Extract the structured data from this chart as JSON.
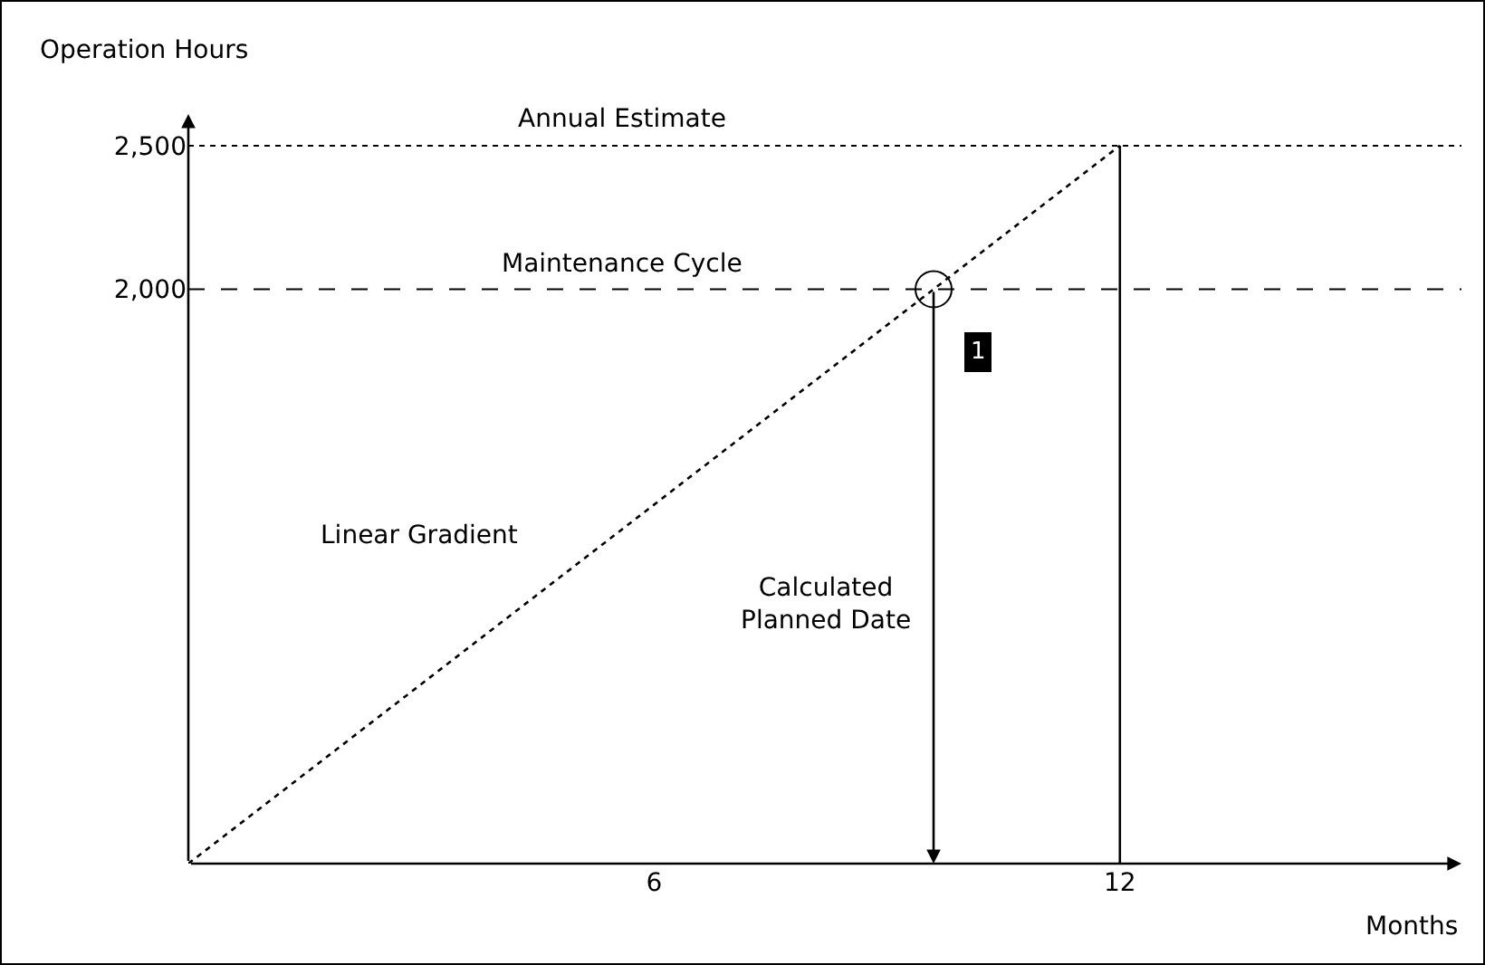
{
  "chart_data": {
    "type": "line",
    "xlabel": "Months",
    "ylabel": "Operation Hours",
    "series": [
      {
        "name": "Linear Gradient",
        "x": [
          0,
          12
        ],
        "color": "#000000",
        "values": [
          0,
          2500
        ],
        "line_style": "dotted"
      },
      {
        "type": "line",
        "x": [
          12,
          12
        ],
        "color": "#000000",
        "values": [
          0,
          2500
        ],
        "line_style": "solid"
      },
      {
        "type": "scatter",
        "x": [
          9.6
        ],
        "color": "#000000",
        "values": [
          2000
        ],
        "marker": "circle"
      }
    ],
    "ref_lines": [
      {
        "axis": "y",
        "value": 2500,
        "label": "Annual Estimate",
        "line_style": "dotted",
        "color": "#000000"
      },
      {
        "axis": "y",
        "value": 2000,
        "label": "Maintenance Cycle",
        "line_style": "dashed",
        "color": "#000000"
      }
    ],
    "annotations": [
      "1",
      "Calculated\nPlanned Date"
    ],
    "xlim": [
      0,
      16.4
    ],
    "ylim": [
      0,
      2610
    ],
    "xticks": [
      6,
      12
    ],
    "yticks": [
      {
        "value": 2000,
        "label": "2,000"
      },
      {
        "value": 2500,
        "label": "2,500"
      }
    ],
    "grid": false,
    "legend": false
  }
}
